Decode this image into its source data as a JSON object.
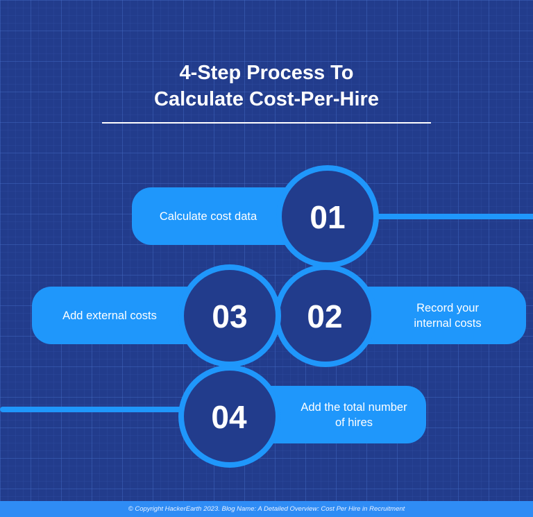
{
  "title_line1": "4-Step Process To",
  "title_line2": "Calculate Cost-Per-Hire",
  "steps": [
    {
      "number": "01",
      "label": "Calculate cost data"
    },
    {
      "number": "02",
      "label": "Record your internal costs"
    },
    {
      "number": "03",
      "label": "Add external costs"
    },
    {
      "number": "04",
      "label": "Add the total number of hires"
    }
  ],
  "footer": "© Copyright HackerEarth 2023. Blog Name: A Detailed Overview: Cost Per Hire in Recruitment",
  "colors": {
    "background": "#223c8c",
    "accent": "#1f97fb",
    "footer": "#2f8cf5"
  }
}
